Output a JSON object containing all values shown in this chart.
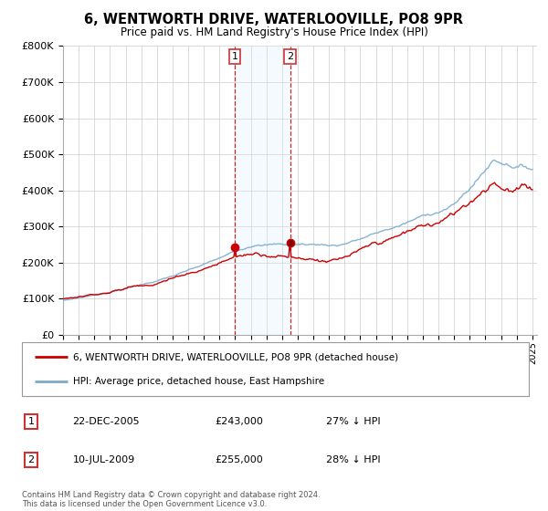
{
  "title": "6, WENTWORTH DRIVE, WATERLOOVILLE, PO8 9PR",
  "subtitle": "Price paid vs. HM Land Registry's House Price Index (HPI)",
  "sale1_date": "22-DEC-2005",
  "sale1_price": 243000,
  "sale1_label": "£243,000",
  "sale1_pct": "27% ↓ HPI",
  "sale2_date": "10-JUL-2009",
  "sale2_price": 255000,
  "sale2_label": "£255,000",
  "sale2_pct": "28% ↓ HPI",
  "legend_house": "6, WENTWORTH DRIVE, WATERLOOVILLE, PO8 9PR (detached house)",
  "legend_hpi": "HPI: Average price, detached house, East Hampshire",
  "footnote": "Contains HM Land Registry data © Crown copyright and database right 2024.\nThis data is licensed under the Open Government Licence v3.0.",
  "house_color": "#cc0000",
  "hpi_color": "#7aabcf",
  "shade_color": "#ddeeff",
  "sale_vline_color": "#cc0000",
  "ylim": [
    0,
    800000
  ],
  "yticks": [
    0,
    100000,
    200000,
    300000,
    400000,
    500000,
    600000,
    700000,
    800000
  ],
  "year_start": 1995,
  "year_end": 2025
}
